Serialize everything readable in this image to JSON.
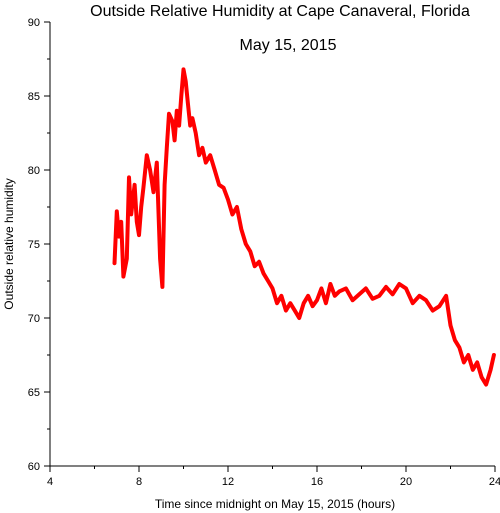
{
  "chart_data": {
    "type": "line",
    "title": "Outside Relative Humidity at Cape Canaveral, Florida",
    "subtitle": "May 15, 2015",
    "xlabel": "Time since midnight on May 15, 2015 (hours)",
    "ylabel": "Outside relative humidity",
    "xlim": [
      4,
      24
    ],
    "ylim": [
      60,
      90
    ],
    "x_ticks": [
      4,
      8,
      12,
      16,
      20,
      24
    ],
    "x_tick_labels": [
      "4",
      "8",
      "12",
      "16",
      "20",
      "24"
    ],
    "y_ticks": [
      60,
      65,
      70,
      75,
      80,
      85,
      90
    ],
    "y_tick_labels": [
      "60",
      "65",
      "70",
      "75",
      "80",
      "85",
      "90"
    ],
    "grid": false,
    "legend": "none",
    "series_color": "#ff0000",
    "series": [
      {
        "x": [
          6.9,
          7.0,
          7.1,
          7.2,
          7.3,
          7.45,
          7.55,
          7.65,
          7.8,
          7.9,
          8.0,
          8.1,
          8.2,
          8.35,
          8.5,
          8.65,
          8.8,
          8.95,
          9.05,
          9.15,
          9.25,
          9.35,
          9.5,
          9.6,
          9.7,
          9.8,
          9.9,
          10.0,
          10.1,
          10.2,
          10.3,
          10.4,
          10.55,
          10.7,
          10.85,
          11.0,
          11.2,
          11.4,
          11.6,
          11.8,
          12.0,
          12.2,
          12.4,
          12.6,
          12.8,
          13.0,
          13.2,
          13.4,
          13.6,
          13.8,
          14.0,
          14.2,
          14.4,
          14.6,
          14.8,
          15.0,
          15.2,
          15.4,
          15.6,
          15.8,
          16.0,
          16.2,
          16.4,
          16.6,
          16.8,
          17.0,
          17.3,
          17.6,
          17.9,
          18.2,
          18.5,
          18.8,
          19.1,
          19.4,
          19.7,
          20.0,
          20.3,
          20.6,
          20.9,
          21.2,
          21.5,
          21.8,
          22.0,
          22.2,
          22.4,
          22.6,
          22.8,
          23.0,
          23.2,
          23.4,
          23.6,
          23.8,
          23.95
        ],
        "y": [
          73.7,
          77.2,
          75.5,
          76.5,
          72.8,
          74.0,
          79.5,
          77.0,
          79.0,
          76.5,
          75.6,
          77.5,
          78.8,
          81.0,
          80.0,
          78.5,
          80.5,
          74.0,
          72.1,
          79.0,
          81.5,
          83.8,
          83.3,
          82.0,
          84.0,
          83.0,
          85.0,
          86.8,
          86.0,
          84.5,
          83.0,
          83.5,
          82.5,
          81.0,
          81.5,
          80.5,
          81.0,
          80.0,
          79.0,
          78.8,
          78.0,
          77.0,
          77.5,
          76.0,
          75.0,
          74.5,
          73.5,
          73.8,
          73.0,
          72.5,
          72.0,
          71.0,
          71.5,
          70.5,
          71.0,
          70.5,
          70.0,
          71.0,
          71.5,
          70.8,
          71.2,
          72.0,
          71.0,
          72.3,
          71.5,
          71.8,
          72.0,
          71.2,
          71.6,
          72.0,
          71.3,
          71.5,
          72.1,
          71.6,
          72.3,
          72.0,
          71.0,
          71.5,
          71.2,
          70.5,
          70.8,
          71.5,
          69.5,
          68.5,
          68.0,
          67.0,
          67.5,
          66.5,
          67.0,
          66.0,
          65.5,
          66.5,
          67.5
        ]
      }
    ]
  }
}
